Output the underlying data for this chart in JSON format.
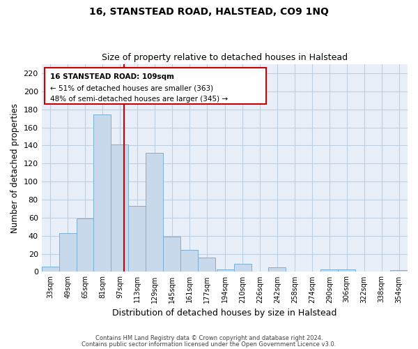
{
  "title": "16, STANSTEAD ROAD, HALSTEAD, CO9 1NQ",
  "subtitle": "Size of property relative to detached houses in Halstead",
  "xlabel": "Distribution of detached houses by size in Halstead",
  "ylabel": "Number of detached properties",
  "bar_color": "#c8d9ec",
  "bar_edge_color": "#7aafd4",
  "bin_labels": [
    "33sqm",
    "49sqm",
    "65sqm",
    "81sqm",
    "97sqm",
    "113sqm",
    "129sqm",
    "145sqm",
    "161sqm",
    "177sqm",
    "194sqm",
    "210sqm",
    "226sqm",
    "242sqm",
    "258sqm",
    "274sqm",
    "290sqm",
    "306sqm",
    "322sqm",
    "338sqm",
    "354sqm"
  ],
  "bar_heights": [
    6,
    43,
    59,
    174,
    141,
    73,
    132,
    39,
    24,
    16,
    3,
    9,
    0,
    5,
    0,
    0,
    3,
    3,
    0,
    0,
    2
  ],
  "ylim": [
    0,
    230
  ],
  "yticks": [
    0,
    20,
    40,
    60,
    80,
    100,
    120,
    140,
    160,
    180,
    200,
    220
  ],
  "bin_starts": [
    33,
    49,
    65,
    81,
    97,
    113,
    129,
    145,
    161,
    177,
    194,
    210,
    226,
    242,
    258,
    274,
    290,
    306,
    322,
    338,
    354
  ],
  "bin_width": 16,
  "xmin": 33,
  "xmax": 370,
  "vline_x": 109,
  "vline_color": "#cc0000",
  "annotation_title": "16 STANSTEAD ROAD: 109sqm",
  "annotation_line1": "← 51% of detached houses are smaller (363)",
  "annotation_line2": "48% of semi-detached houses are larger (345) →",
  "annotation_box_color": "#ffffff",
  "annotation_box_edge": "#cc0000",
  "footer1": "Contains HM Land Registry data © Crown copyright and database right 2024.",
  "footer2": "Contains public sector information licensed under the Open Government Licence v3.0.",
  "background_color": "#ffffff",
  "grid_color": "#c0cfe0",
  "grid_background": "#e8eff8"
}
